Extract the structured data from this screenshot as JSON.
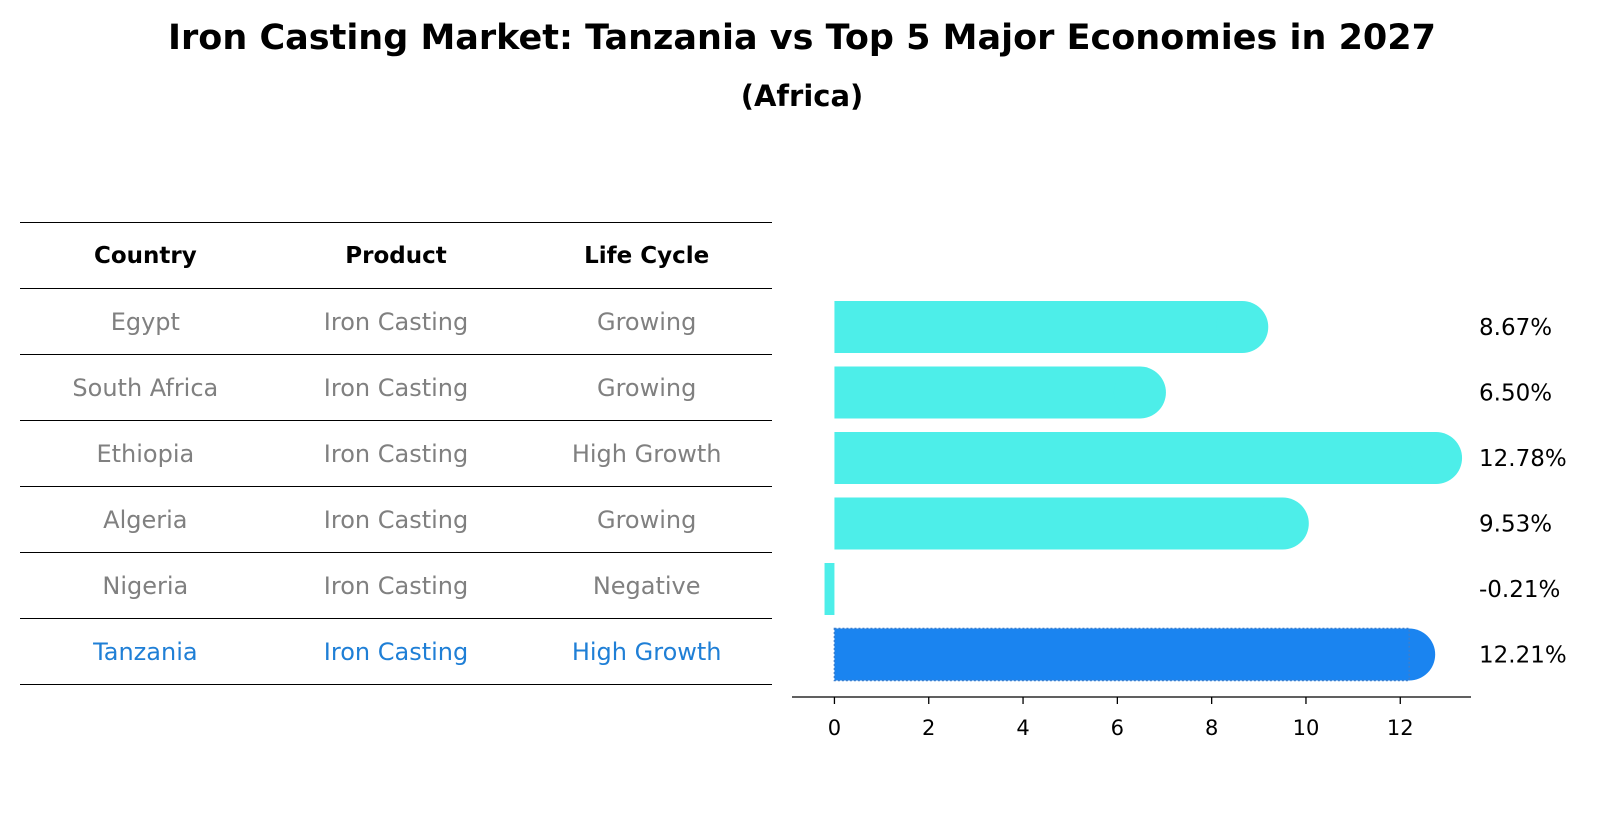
{
  "title": "Iron Casting Market: Tanzania vs Top 5 Major Economies in 2027",
  "subtitle": "(Africa)",
  "table": {
    "headers": [
      "Country",
      "Product",
      "Life Cycle"
    ],
    "rows": [
      {
        "country": "Egypt",
        "product": "Iron Casting",
        "life_cycle": "Growing"
      },
      {
        "country": "South Africa",
        "product": "Iron Casting",
        "life_cycle": "Growing"
      },
      {
        "country": "Ethiopia",
        "product": "Iron Casting",
        "life_cycle": "High Growth"
      },
      {
        "country": "Algeria",
        "product": "Iron Casting",
        "life_cycle": "Growing"
      },
      {
        "country": "Nigeria",
        "product": "Iron Casting",
        "life_cycle": "Negative"
      },
      {
        "country": "Tanzania",
        "product": "Iron Casting",
        "life_cycle": "High Growth"
      }
    ],
    "highlight_color": "#1f7fd6",
    "text_color": "#808080"
  },
  "chart_data": {
    "type": "bar",
    "orientation": "horizontal",
    "categories": [
      "Egypt",
      "South Africa",
      "Ethiopia",
      "Algeria",
      "Nigeria",
      "Tanzania"
    ],
    "values": [
      8.67,
      6.5,
      12.78,
      9.53,
      -0.21,
      12.21
    ],
    "value_labels": [
      "8.67%",
      "6.50%",
      "12.78%",
      "9.53%",
      "-0.21%",
      "12.21%"
    ],
    "highlight_category": "Tanzania",
    "colors": {
      "default": "#4deee9",
      "highlight": "#1a84f0"
    },
    "xlim": [
      -0.9,
      13.5
    ],
    "xticks": [
      0,
      2,
      4,
      6,
      8,
      10,
      12
    ],
    "xlabel": "",
    "ylabel": "",
    "title": ""
  }
}
